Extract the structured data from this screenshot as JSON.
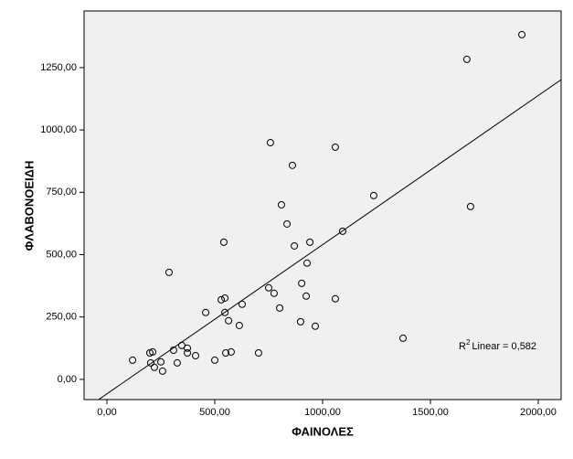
{
  "chart_data": {
    "type": "scatter",
    "x_label": "ΦΑΙΝΟΛΕΣ",
    "y_label": "ΦΛΑΒΟΝΟΕΙΔΗ",
    "x": [
      119,
      199,
      212,
      203,
      220,
      250,
      258,
      288,
      309,
      326,
      347,
      373,
      373,
      411,
      458,
      500,
      530,
      547,
      542,
      547,
      551,
      564,
      576,
      614,
      627,
      703,
      750,
      775,
      758,
      801,
      809,
      835,
      860,
      869,
      898,
      903,
      928,
      924,
      941,
      966,
      1059,
      1059,
      1093,
      1237,
      1373,
      1669,
      1686,
      1924
    ],
    "values": [
      77,
      106,
      110,
      66,
      48,
      70,
      33,
      429,
      117,
      66,
      136,
      125,
      106,
      95,
      268,
      77,
      319,
      326,
      550,
      268,
      106,
      235,
      110,
      216,
      301,
      106,
      367,
      345,
      949,
      286,
      700,
      623,
      858,
      535,
      231,
      385,
      466,
      334,
      550,
      213,
      931,
      323,
      594,
      737,
      165,
      1283,
      693,
      1382
    ],
    "color": "#000000",
    "fit": {
      "slope": 0.598,
      "intercept": -58
    },
    "annotation": {
      "base": "R",
      "sup": "2",
      "text": "Linear = 0,582"
    },
    "xlim": [
      -106,
      2106
    ],
    "ylim": [
      -81,
      1477
    ],
    "xticks": [
      {
        "value": 0,
        "label": "0,00"
      },
      {
        "value": 500,
        "label": "500,00"
      },
      {
        "value": 1000,
        "label": "1000,00"
      },
      {
        "value": 1500,
        "label": "1500,00"
      },
      {
        "value": 2000,
        "label": "2000,00"
      }
    ],
    "yticks": [
      {
        "value": 0,
        "label": "0,00"
      },
      {
        "value": 250,
        "label": "250,00"
      },
      {
        "value": 500,
        "label": "500,00"
      },
      {
        "value": 750,
        "label": "750,00"
      },
      {
        "value": 1000,
        "label": "1000,00"
      },
      {
        "value": 1250,
        "label": "1250,00"
      }
    ],
    "grid": false
  }
}
